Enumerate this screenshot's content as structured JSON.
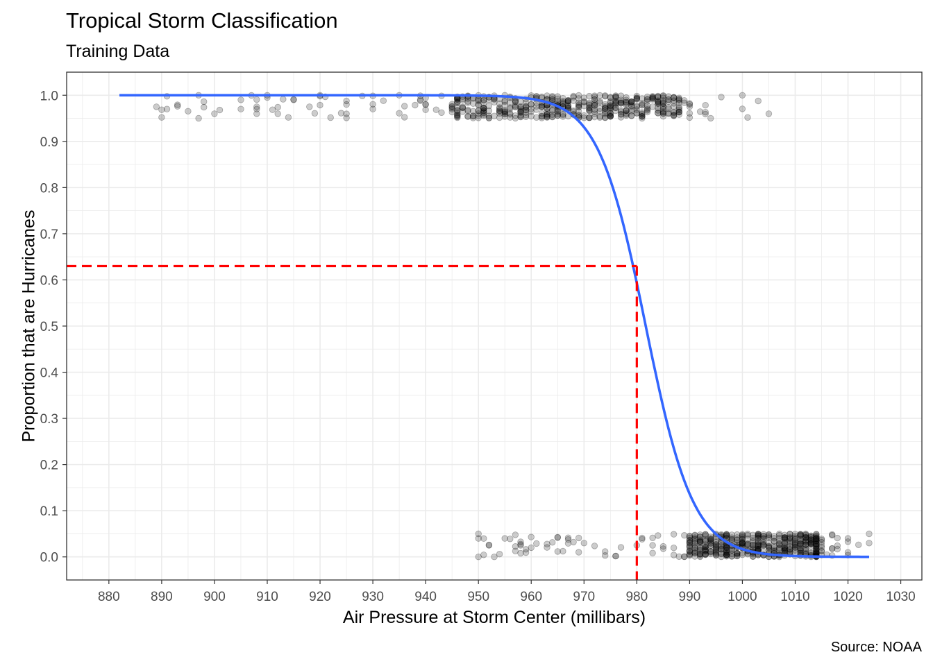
{
  "chart_data": {
    "type": "scatter",
    "title": "Tropical Storm Classification",
    "subtitle": "Training Data",
    "caption": "Source: NOAA",
    "xlabel": "Air Pressure at Storm Center (millibars)",
    "ylabel": "Proportion that are Hurricanes",
    "xlim": [
      872,
      1034
    ],
    "ylim": [
      -0.05,
      1.05
    ],
    "x_ticks": [
      880,
      890,
      900,
      910,
      920,
      930,
      940,
      950,
      960,
      970,
      980,
      990,
      1000,
      1010,
      1020,
      1030
    ],
    "y_ticks": [
      0.0,
      0.1,
      0.2,
      0.3,
      0.4,
      0.5,
      0.6,
      0.7,
      0.8,
      0.9,
      1.0
    ],
    "y_tick_labels": [
      "0.0",
      "0.1",
      "0.2",
      "0.3",
      "0.4",
      "0.5",
      "0.6",
      "0.7",
      "0.8",
      "0.9",
      "1.0"
    ],
    "grid": true,
    "colors": {
      "points": "#000000",
      "curve": "#3366FF",
      "reference": "#FF0000"
    },
    "series": [
      {
        "type": "scatter",
        "jitter_height": 0.05,
        "groups": [
          {
            "y": 1,
            "x_range": [
              889,
              1005
            ],
            "dense_range": [
              945,
              990
            ]
          },
          {
            "y": 0,
            "x_range": [
              950,
              1024
            ],
            "dense_range": [
              990,
              1015
            ]
          }
        ],
        "sample_points": [
          [
            889,
            0.975
          ],
          [
            897,
            1.0
          ],
          [
            897,
            0.95
          ],
          [
            900,
            0.96
          ],
          [
            905,
            0.99
          ],
          [
            905,
            0.97
          ],
          [
            908,
            0.975
          ],
          [
            910,
            1.0
          ],
          [
            910,
            0.995
          ],
          [
            912,
            0.96
          ],
          [
            915,
            0.99
          ],
          [
            918,
            0.975
          ],
          [
            920,
            1.0
          ],
          [
            925,
            0.98
          ],
          [
            930,
            0.97
          ],
          [
            935,
            1.0
          ],
          [
            940,
            0.98
          ],
          [
            945,
            0.975
          ],
          [
            950,
            0.99
          ],
          [
            960,
            0.97
          ],
          [
            970,
            0.985
          ],
          [
            980,
            0.975
          ],
          [
            990,
            0.98
          ],
          [
            1000,
            1.0
          ],
          [
            1005,
            0.96
          ],
          [
            950,
            0.05
          ],
          [
            950,
            0.04
          ],
          [
            950,
            0.0
          ],
          [
            953,
            0.0
          ],
          [
            955,
            0.04
          ],
          [
            960,
            0.02
          ],
          [
            970,
            0.03
          ],
          [
            980,
            0.025
          ],
          [
            990,
            0.02
          ],
          [
            1000,
            0.03
          ],
          [
            1010,
            0.02
          ],
          [
            1020,
            0.04
          ],
          [
            1024,
            0.05
          ],
          [
            1024,
            0.03
          ]
        ]
      },
      {
        "type": "logistic_fit",
        "x_range": [
          882,
          1024
        ],
        "midpoint": 981.7,
        "scale": 4.5
      },
      {
        "type": "reference_lines",
        "x": 980,
        "y": 0.63
      }
    ]
  }
}
